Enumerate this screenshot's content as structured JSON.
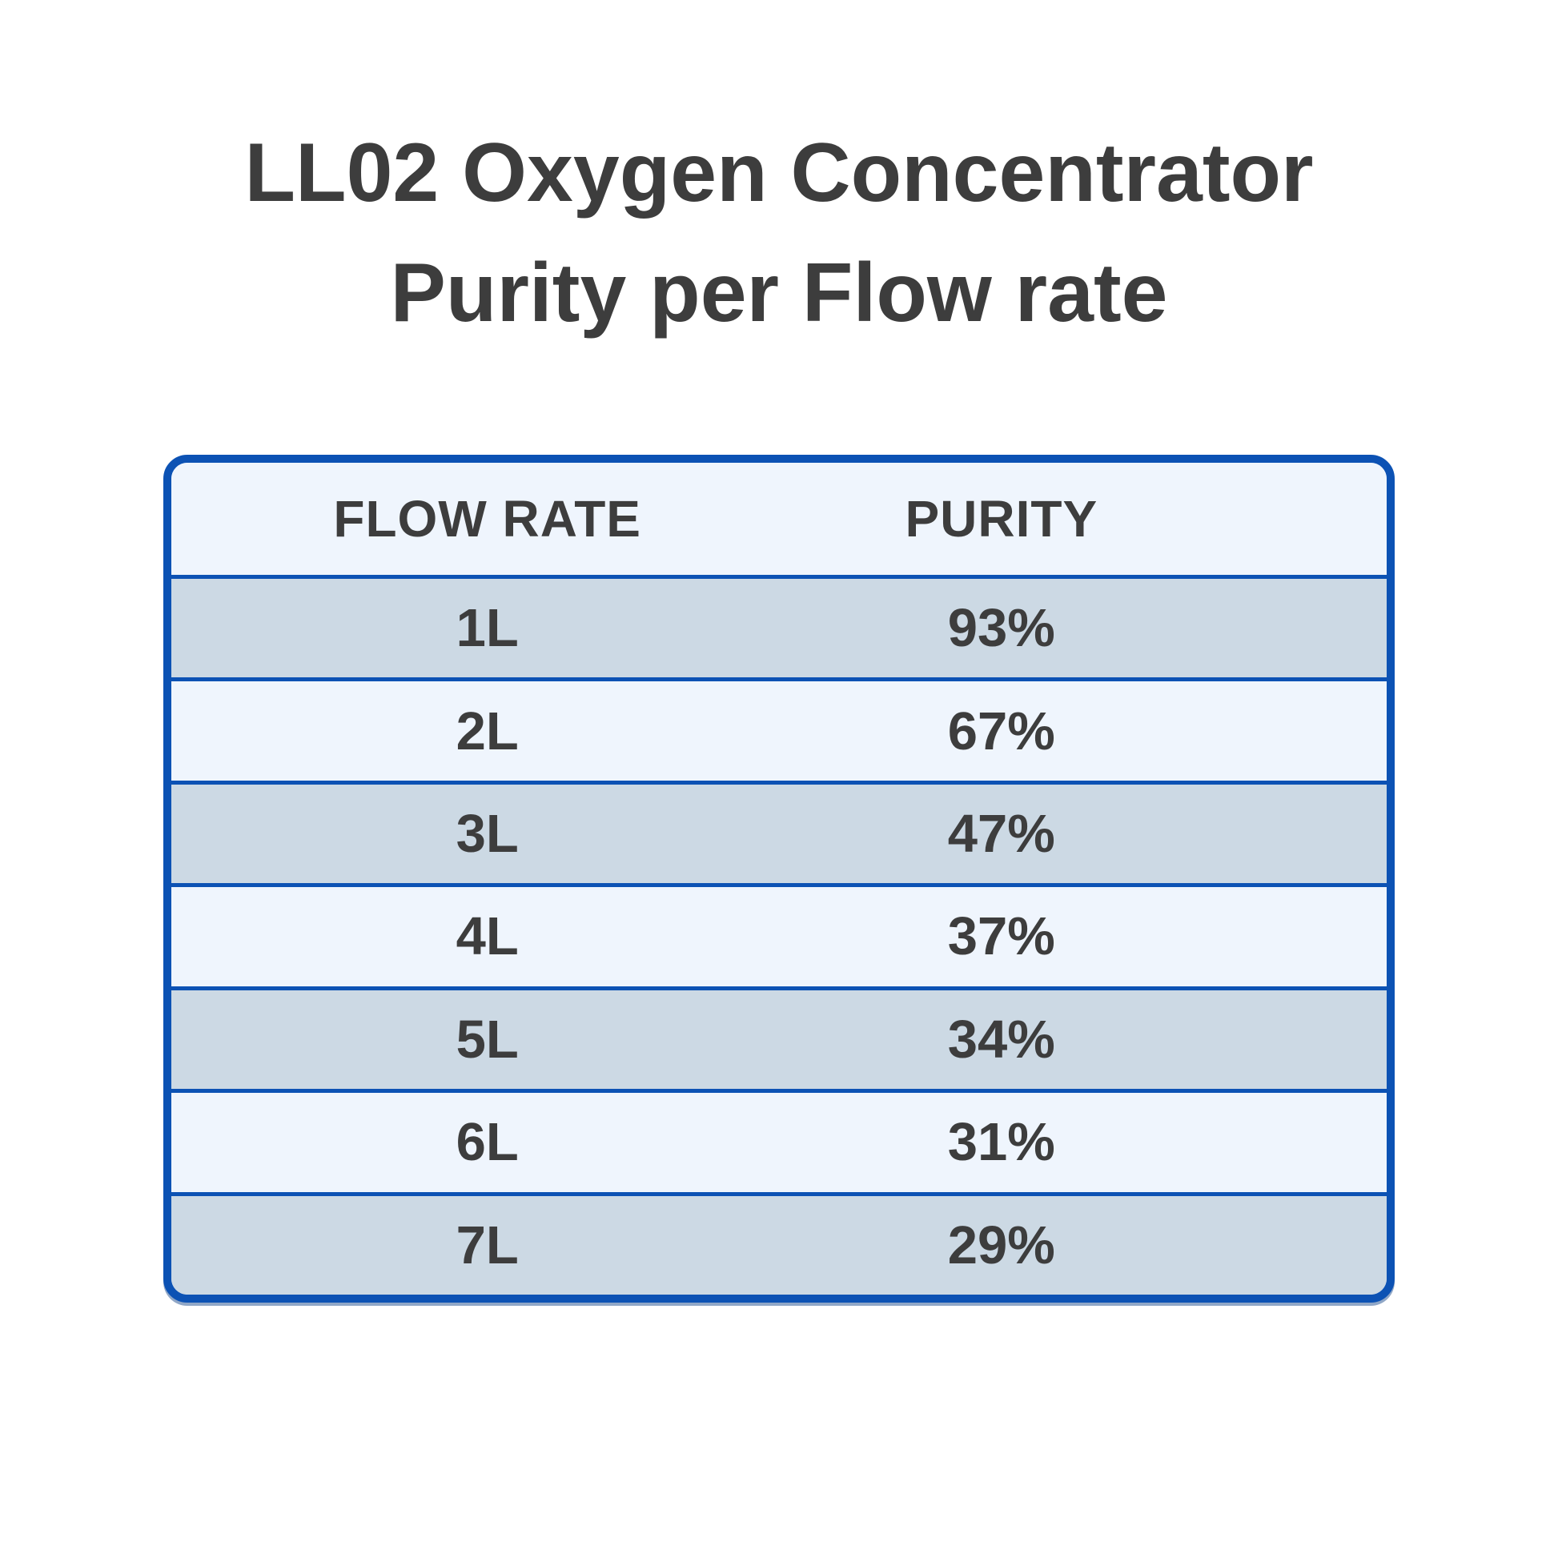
{
  "title": {
    "line1": "LL02 Oxygen Concentrator",
    "line2": "Purity per Flow rate"
  },
  "table": {
    "columns": {
      "flow_rate": "FLOW RATE",
      "purity": "PURITY"
    },
    "rows": [
      {
        "flow_rate": "1L",
        "purity": "93%"
      },
      {
        "flow_rate": "2L",
        "purity": "67%"
      },
      {
        "flow_rate": "3L",
        "purity": "47%"
      },
      {
        "flow_rate": "4L",
        "purity": "37%"
      },
      {
        "flow_rate": "5L",
        "purity": "34%"
      },
      {
        "flow_rate": "6L",
        "purity": "31%"
      },
      {
        "flow_rate": "7L",
        "purity": "29%"
      }
    ]
  },
  "colors": {
    "border_blue": "#0c52b4",
    "row_dark": "#ccd9e4",
    "row_light": "#eff5fd",
    "header_bg": "#eff5fd",
    "text": "#3d3d3d",
    "background": "#ffffff"
  },
  "chart_data": {
    "type": "table",
    "title": "LL02 Oxygen Concentrator Purity per Flow rate",
    "categories": [
      "1L",
      "2L",
      "3L",
      "4L",
      "5L",
      "6L",
      "7L"
    ],
    "values": [
      93,
      67,
      47,
      37,
      34,
      31,
      29
    ],
    "xlabel": "FLOW RATE",
    "ylabel": "PURITY",
    "value_unit": "%"
  }
}
